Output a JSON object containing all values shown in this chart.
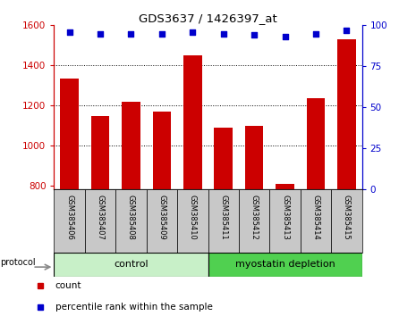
{
  "title": "GDS3637 / 1426397_at",
  "samples": [
    "GSM385406",
    "GSM385407",
    "GSM385408",
    "GSM385409",
    "GSM385410",
    "GSM385411",
    "GSM385412",
    "GSM385413",
    "GSM385414",
    "GSM385415"
  ],
  "counts": [
    1335,
    1145,
    1220,
    1170,
    1450,
    1090,
    1100,
    810,
    1235,
    1530
  ],
  "percentile_ranks": [
    96,
    95,
    95,
    95,
    96,
    95,
    94,
    93,
    95,
    97
  ],
  "bar_color": "#CC0000",
  "dot_color": "#0000CC",
  "ylim_left": [
    780,
    1600
  ],
  "ylim_right": [
    0,
    100
  ],
  "yticks_left": [
    800,
    1000,
    1200,
    1400,
    1600
  ],
  "yticks_right": [
    0,
    25,
    50,
    75,
    100
  ],
  "grid_lines": [
    1000,
    1200,
    1400
  ],
  "bar_width": 0.6,
  "legend_count_label": "count",
  "legend_pct_label": "percentile rank within the sample",
  "protocol_label": "protocol",
  "group_label_control": "control",
  "group_label_myostatin": "myostatin depletion",
  "tick_label_area_color": "#c8c8c8",
  "control_color": "#c8f0c8",
  "myostatin_color": "#50d050"
}
